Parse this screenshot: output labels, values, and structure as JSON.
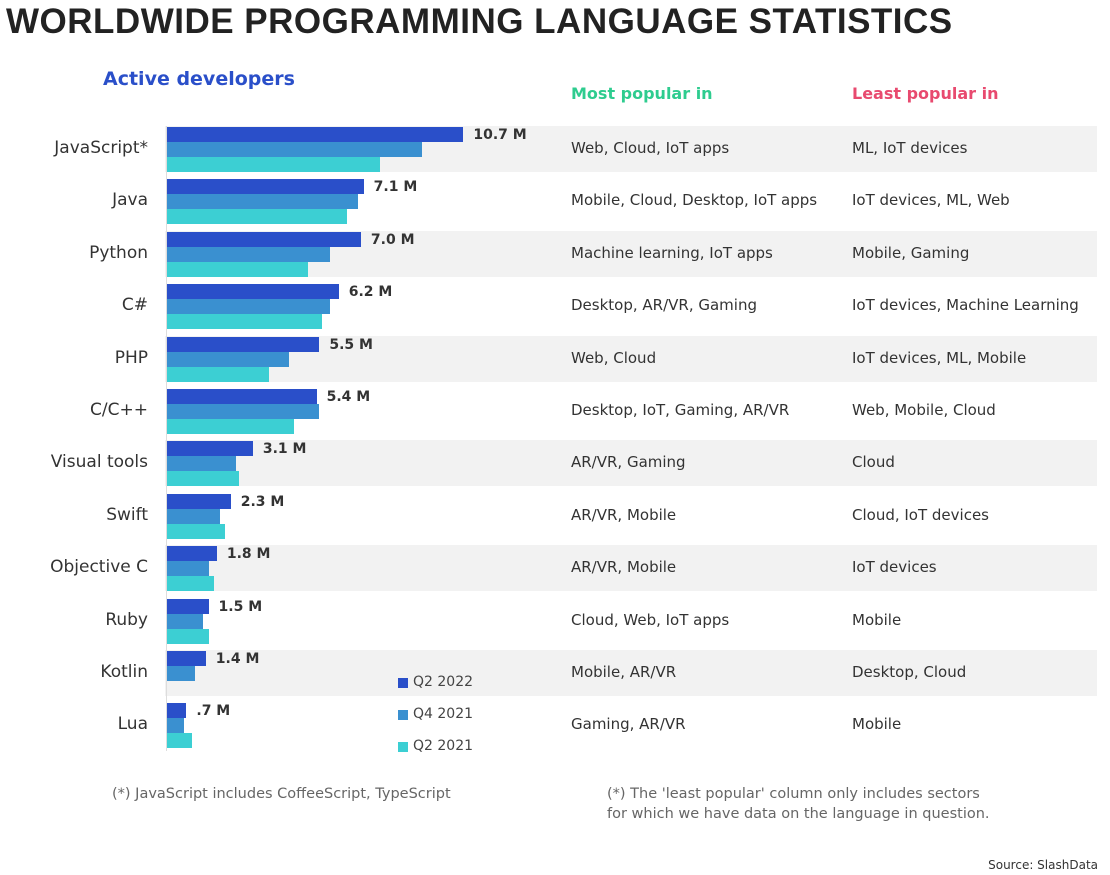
{
  "title": "WORLDWIDE PROGRAMMING LANGUAGE STATISTICS",
  "headers": {
    "active": "Active developers",
    "most": "Most popular in",
    "least": "Least popular in"
  },
  "colors": {
    "q2_2022": "#2a4fc9",
    "q4_2021": "#3a90d0",
    "q2_2021": "#3ccfd3",
    "most": "#2ecc8f",
    "least": "#e84a6f",
    "row_alt": "#f2f2f2"
  },
  "chart_data": {
    "type": "bar",
    "orientation": "horizontal",
    "unit": "M",
    "categories": [
      "JavaScript*",
      "Java",
      "Python",
      "C#",
      "PHP",
      "C/C++",
      "Visual tools",
      "Swift",
      "Objective C",
      "Ruby",
      "Kotlin",
      "Lua"
    ],
    "series": [
      {
        "name": "Q2 2022",
        "values": [
          10.7,
          7.1,
          7.0,
          6.2,
          5.5,
          5.4,
          3.1,
          2.3,
          1.8,
          1.5,
          1.4,
          0.7
        ]
      },
      {
        "name": "Q4 2021",
        "values": [
          9.2,
          6.9,
          5.9,
          5.9,
          4.4,
          5.5,
          2.5,
          1.9,
          1.5,
          1.3,
          1.0,
          0.6
        ]
      },
      {
        "name": "Q2 2021",
        "values": [
          7.7,
          6.5,
          5.1,
          5.6,
          3.7,
          4.6,
          2.6,
          2.1,
          1.7,
          1.5,
          null,
          0.9
        ]
      }
    ],
    "data_labels": [
      "10.7 M",
      "7.1 M",
      "7.0 M",
      "6.2 M",
      "5.5 M",
      "5.4 M",
      "3.1 M",
      "2.3 M",
      "1.8 M",
      "1.5 M",
      "1.4 M",
      ".7 M"
    ],
    "legend_position": "bottom-right",
    "grid": false
  },
  "most_popular": [
    "Web, Cloud, IoT apps",
    "Mobile, Cloud, Desktop, IoT apps",
    "Machine learning, IoT apps",
    "Desktop, AR/VR, Gaming",
    "Web, Cloud",
    "Desktop, IoT, Gaming, AR/VR",
    "AR/VR, Gaming",
    "AR/VR, Mobile",
    "AR/VR, Mobile",
    "Cloud, Web, IoT apps",
    "Mobile, AR/VR",
    "Gaming, AR/VR"
  ],
  "least_popular": [
    "ML, IoT devices",
    "IoT devices, ML, Web",
    "Mobile, Gaming",
    "IoT devices, Machine Learning",
    "IoT devices, ML, Mobile",
    "Web, Mobile, Cloud",
    "Cloud",
    "Cloud, IoT devices",
    "IoT devices",
    "Mobile",
    "Desktop, Cloud",
    "Mobile"
  ],
  "footnotes": {
    "left": "(*) JavaScript includes CoffeeScript, TypeScript",
    "right_1": "(*) The 'least popular' column only includes sectors",
    "right_2": "for which we have data on the language in question."
  },
  "source": "Source: SlashData"
}
